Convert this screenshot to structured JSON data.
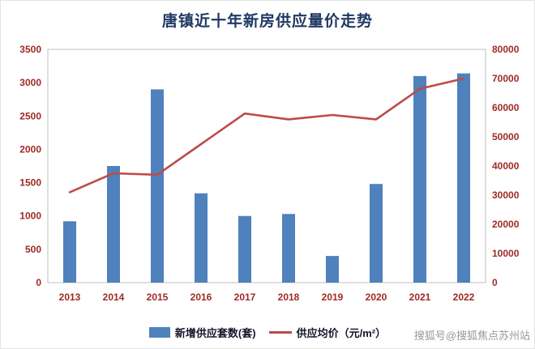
{
  "page": {
    "title": "唐镇近十年新房供应量价走势",
    "watermark": "搜狐号@搜狐焦点苏州站"
  },
  "colors": {
    "title": "#203864",
    "axis_label": "#9e2a25",
    "plot_border": "#bfbfbf",
    "bar": "#4f81bd",
    "line": "#be4b48"
  },
  "chart_data": {
    "type": "combo",
    "title": "唐镇近十年新房供应量价走势",
    "categories": [
      "2013",
      "2014",
      "2015",
      "2016",
      "2017",
      "2018",
      "2019",
      "2020",
      "2021",
      "2022"
    ],
    "series": [
      {
        "name": "新增供应套数(套)",
        "type": "bar",
        "axis": "left",
        "color": "#4f81bd",
        "values": [
          920,
          1750,
          2900,
          1340,
          1000,
          1030,
          400,
          1480,
          3100,
          3140
        ]
      },
      {
        "name": "供应均价（元/m²）",
        "type": "line",
        "axis": "right",
        "color": "#be4b48",
        "values": [
          31000,
          37500,
          37000,
          47500,
          58000,
          56000,
          57500,
          56000,
          66500,
          70000
        ]
      }
    ],
    "left_axis": {
      "min": 0,
      "max": 3500,
      "step": 500
    },
    "right_axis": {
      "min": 0,
      "max": 80000,
      "step": 10000
    },
    "grid": false,
    "legend_position": "bottom"
  }
}
